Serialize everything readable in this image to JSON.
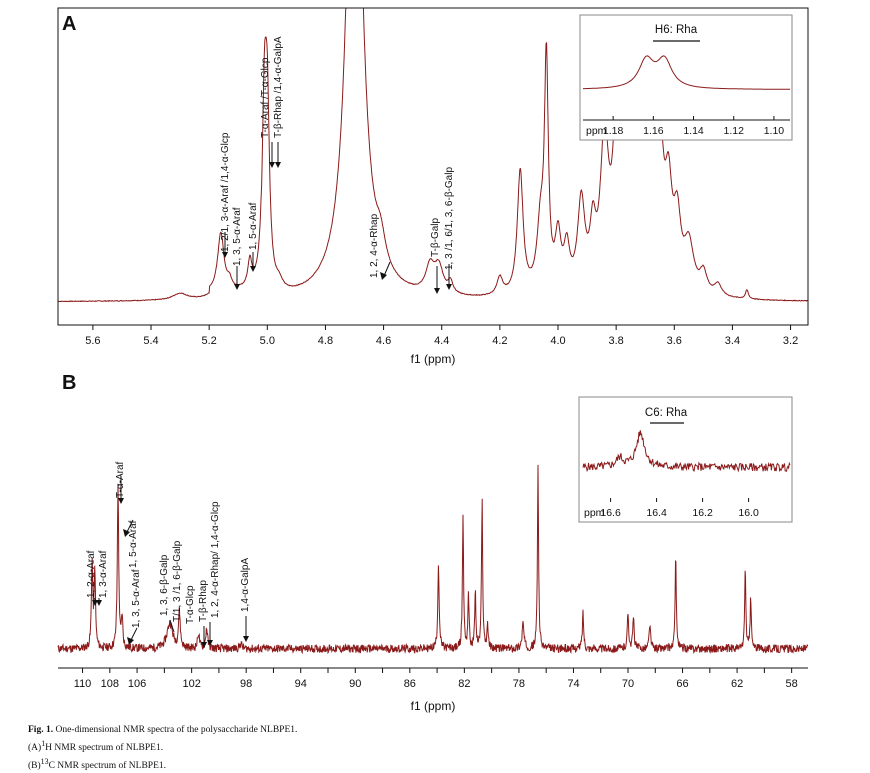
{
  "colors": {
    "spectrum": "#8b1a1a",
    "axis": "#111111",
    "frame": "#888888"
  },
  "panels": [
    {
      "id": "A",
      "label": "A",
      "nucleus": "1H",
      "xlabel": "f1 (ppm)",
      "xlim": [
        5.72,
        3.14
      ],
      "ticks": [
        "5.6",
        "5.4",
        "5.2",
        "5.0",
        "4.8",
        "4.6",
        "4.4",
        "4.2",
        "4.0",
        "3.8",
        "3.6",
        "3.4",
        "3.2"
      ],
      "inset": {
        "title": "H6: Rha",
        "axis_label": "ppm",
        "xlim": [
          1.195,
          1.092
        ],
        "ticks": [
          "1.18",
          "1.16",
          "1.14",
          "1.12",
          "1.10"
        ]
      },
      "annotations": [
        "1, 2/1, 3-α-Araf /1,4-α-Glcp",
        "1, 3, 5-α-Araf",
        "1, 5-α-Araf",
        "T-α-Araf /T-α-Glcp",
        "T-β-Rhap /1,4-α-GalpA",
        "1, 2, 4-α-Rhap",
        "T-β-Galp",
        "1, 3 /1, 6/1, 3, 6-β-Galp"
      ]
    },
    {
      "id": "B",
      "label": "B",
      "nucleus": "13C",
      "xlabel": "f1 (ppm)",
      "xlim": [
        111.8,
        56.8
      ],
      "ticks": [
        "110",
        "108",
        "106",
        "104",
        "102",
        "100",
        "98",
        "96",
        "94",
        "92",
        "90",
        "88",
        "86",
        "84",
        "82",
        "80",
        "78",
        "76",
        "74",
        "72",
        "70",
        "68",
        "66",
        "64",
        "62",
        "60",
        "58"
      ],
      "tick_labels_shown": [
        "110",
        "108",
        "106",
        "102",
        "98",
        "94",
        "90",
        "86",
        "82",
        "78",
        "74",
        "70",
        "66",
        "62",
        "58"
      ],
      "inset": {
        "title": "C6: Rha",
        "axis_label": "ppm",
        "xlim": [
          16.72,
          15.82
        ],
        "ticks": [
          "16.6",
          "16.4",
          "16.2",
          "16.0"
        ]
      },
      "annotations": [
        "1, 2-α-Araf",
        "1, 3-α-Araf",
        "T-α-Araf",
        "1, 5-α-Araf",
        "1, 3, 5-α-Araf",
        "1, 3, 6-β-Galp",
        "T/1, 3 /1, 6-β-Galp",
        "T-α-Glcp",
        "T-β-Rhap",
        "1, 2, 4-α-Rhap/ 1,4-α-Glcp",
        "1,4-α-GalpA"
      ]
    }
  ],
  "chart_data": [
    {
      "type": "line",
      "title": "A: 1H NMR spectrum of NLBPE1",
      "xlabel": "f1 (ppm)",
      "ylabel": "",
      "xlim": [
        5.72,
        3.14
      ],
      "ylim": [
        0,
        100
      ],
      "x_reversed": true,
      "peaks": [
        {
          "x": 5.3,
          "y": 2.2,
          "w": 0.03
        },
        {
          "x": 5.16,
          "y": 20,
          "w": 0.013
        },
        {
          "x": 5.13,
          "y": 3,
          "w": 0.01
        },
        {
          "x": 5.06,
          "y": 9,
          "w": 0.008
        },
        {
          "x": 5.01,
          "y": 58,
          "w": 0.009
        },
        {
          "x": 5.0,
          "y": 56,
          "w": 0.009
        },
        {
          "x": 4.96,
          "y": 3,
          "w": 0.015
        },
        {
          "x": 4.7,
          "y": 200,
          "w": 0.03
        },
        {
          "x": 4.61,
          "y": 9,
          "w": 0.02
        },
        {
          "x": 4.44,
          "y": 9,
          "w": 0.018
        },
        {
          "x": 4.41,
          "y": 9,
          "w": 0.018
        },
        {
          "x": 4.37,
          "y": 4,
          "w": 0.01
        },
        {
          "x": 4.2,
          "y": 6,
          "w": 0.012
        },
        {
          "x": 4.13,
          "y": 42,
          "w": 0.012
        },
        {
          "x": 4.04,
          "y": 76,
          "w": 0.008
        },
        {
          "x": 4.06,
          "y": 22,
          "w": 0.015
        },
        {
          "x": 4.0,
          "y": 18,
          "w": 0.012
        },
        {
          "x": 3.97,
          "y": 14,
          "w": 0.012
        },
        {
          "x": 3.92,
          "y": 30,
          "w": 0.015
        },
        {
          "x": 3.88,
          "y": 18,
          "w": 0.012
        },
        {
          "x": 3.84,
          "y": 50,
          "w": 0.017
        },
        {
          "x": 3.8,
          "y": 46,
          "w": 0.015
        },
        {
          "x": 3.77,
          "y": 38,
          "w": 0.015
        },
        {
          "x": 3.74,
          "y": 48,
          "w": 0.015
        },
        {
          "x": 3.71,
          "y": 44,
          "w": 0.015
        },
        {
          "x": 3.68,
          "y": 40,
          "w": 0.015
        },
        {
          "x": 3.65,
          "y": 46,
          "w": 0.015
        },
        {
          "x": 3.62,
          "y": 30,
          "w": 0.015
        },
        {
          "x": 3.59,
          "y": 22,
          "w": 0.015
        },
        {
          "x": 3.55,
          "y": 16,
          "w": 0.02
        },
        {
          "x": 3.5,
          "y": 7,
          "w": 0.015
        },
        {
          "x": 3.45,
          "y": 4,
          "w": 0.015
        },
        {
          "x": 3.35,
          "y": 3,
          "w": 0.006
        }
      ],
      "inset": {
        "title": "H6: Rha",
        "xlim": [
          1.195,
          1.092
        ],
        "peaks": [
          {
            "x": 1.1635,
            "y": 62,
            "w": 0.0045
          },
          {
            "x": 1.1545,
            "y": 62,
            "w": 0.0045
          }
        ]
      }
    },
    {
      "type": "line",
      "title": "B: 13C NMR spectrum of NLBPE1",
      "xlabel": "f1 (ppm)",
      "ylabel": "",
      "xlim": [
        111.8,
        56.8
      ],
      "ylim": [
        0,
        100
      ],
      "x_reversed": true,
      "peaks": [
        {
          "x": 109.3,
          "y": 33,
          "w": 0.06
        },
        {
          "x": 109.1,
          "y": 30,
          "w": 0.06
        },
        {
          "x": 107.4,
          "y": 65,
          "w": 0.06
        },
        {
          "x": 107.1,
          "y": 12,
          "w": 0.06
        },
        {
          "x": 103.6,
          "y": 10,
          "w": 0.25
        },
        {
          "x": 102.9,
          "y": 14,
          "w": 0.08
        },
        {
          "x": 101.5,
          "y": 6,
          "w": 0.08
        },
        {
          "x": 100.9,
          "y": 8,
          "w": 0.08
        },
        {
          "x": 98.4,
          "y": 2,
          "w": 0.1
        },
        {
          "x": 83.9,
          "y": 33,
          "w": 0.06
        },
        {
          "x": 82.1,
          "y": 53,
          "w": 0.05
        },
        {
          "x": 81.7,
          "y": 22,
          "w": 0.05
        },
        {
          "x": 81.2,
          "y": 23,
          "w": 0.05
        },
        {
          "x": 80.7,
          "y": 58,
          "w": 0.05
        },
        {
          "x": 80.3,
          "y": 10,
          "w": 0.05
        },
        {
          "x": 77.7,
          "y": 10,
          "w": 0.08
        },
        {
          "x": 76.6,
          "y": 72,
          "w": 0.05
        },
        {
          "x": 73.3,
          "y": 14,
          "w": 0.06
        },
        {
          "x": 70.0,
          "y": 14,
          "w": 0.06
        },
        {
          "x": 69.6,
          "y": 12,
          "w": 0.06
        },
        {
          "x": 68.4,
          "y": 10,
          "w": 0.06
        },
        {
          "x": 66.5,
          "y": 38,
          "w": 0.05
        },
        {
          "x": 61.4,
          "y": 32,
          "w": 0.05
        },
        {
          "x": 61.0,
          "y": 20,
          "w": 0.05
        }
      ],
      "inset": {
        "title": "C6: Rha",
        "xlim": [
          16.72,
          15.82
        ],
        "peaks": [
          {
            "x": 16.47,
            "y": 38,
            "w": 0.022
          },
          {
            "x": 16.56,
            "y": 10,
            "w": 0.018
          }
        ]
      }
    }
  ],
  "caption": {
    "fig": "Fig. 1.",
    "text": "One-dimensional NMR spectra of the polysaccharide NLBPE1.",
    "lineA_prefix": "(A)",
    "lineA_sup": "1",
    "lineA_text": "H NMR spectrum of NLBPE1.",
    "lineB_prefix": "(B)",
    "lineB_sup": "13",
    "lineB_text": "C NMR spectrum of NLBPE1."
  }
}
